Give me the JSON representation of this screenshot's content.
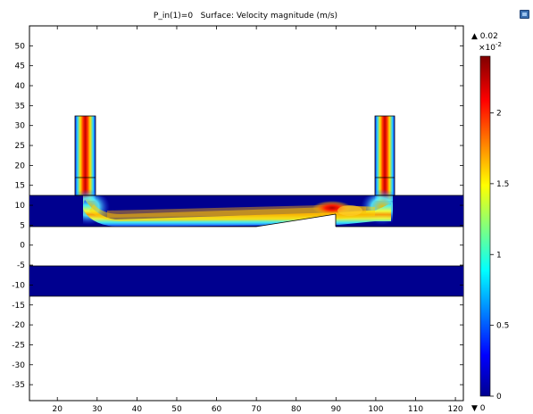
{
  "header": {
    "title": "P_in(1)=0   Surface: Velocity magnitude (m/s)"
  },
  "colorbar": {
    "max_label": "▲ 0.02",
    "min_label": "▼ 0",
    "multiplier": "×10",
    "exponent": "-2",
    "ticks": [
      "2",
      "1.5",
      "1",
      "0.5",
      "0"
    ],
    "range": [
      0,
      2.4
    ]
  },
  "chart_data": {
    "type": "heatmap",
    "title": "P_in(1)=0   Surface: Velocity magnitude (m/s)",
    "quantity": "Velocity magnitude (m/s)",
    "xlim": [
      13,
      122
    ],
    "ylim": [
      -39,
      55
    ],
    "xticks": [
      "20",
      "30",
      "40",
      "50",
      "60",
      "70",
      "80",
      "90",
      "100",
      "110",
      "120"
    ],
    "yticks": [
      "50",
      "45",
      "40",
      "35",
      "30",
      "25",
      "20",
      "15",
      "10",
      "5",
      "0",
      "-5",
      "-10",
      "-15",
      "-20",
      "-25",
      "-30",
      "-35"
    ],
    "value_range": [
      0,
      0.024
    ],
    "colormap": "rainbow (blue-cyan-yellow-red)",
    "regions": [
      {
        "name": "upper channel",
        "x": [
          13,
          122
        ],
        "y": [
          5,
          12.5
        ]
      },
      {
        "name": "lower channel",
        "x": [
          13,
          122
        ],
        "y": [
          -12.5,
          -5
        ]
      },
      {
        "name": "left pipe",
        "x": [
          25,
          30
        ],
        "y": [
          12.5,
          32.5
        ]
      },
      {
        "name": "right pipe",
        "x": [
          100,
          105
        ],
        "y": [
          12.5,
          32.5
        ]
      }
    ],
    "peak_velocity": 0.024,
    "peak_location": [
      89,
      9.5
    ]
  }
}
